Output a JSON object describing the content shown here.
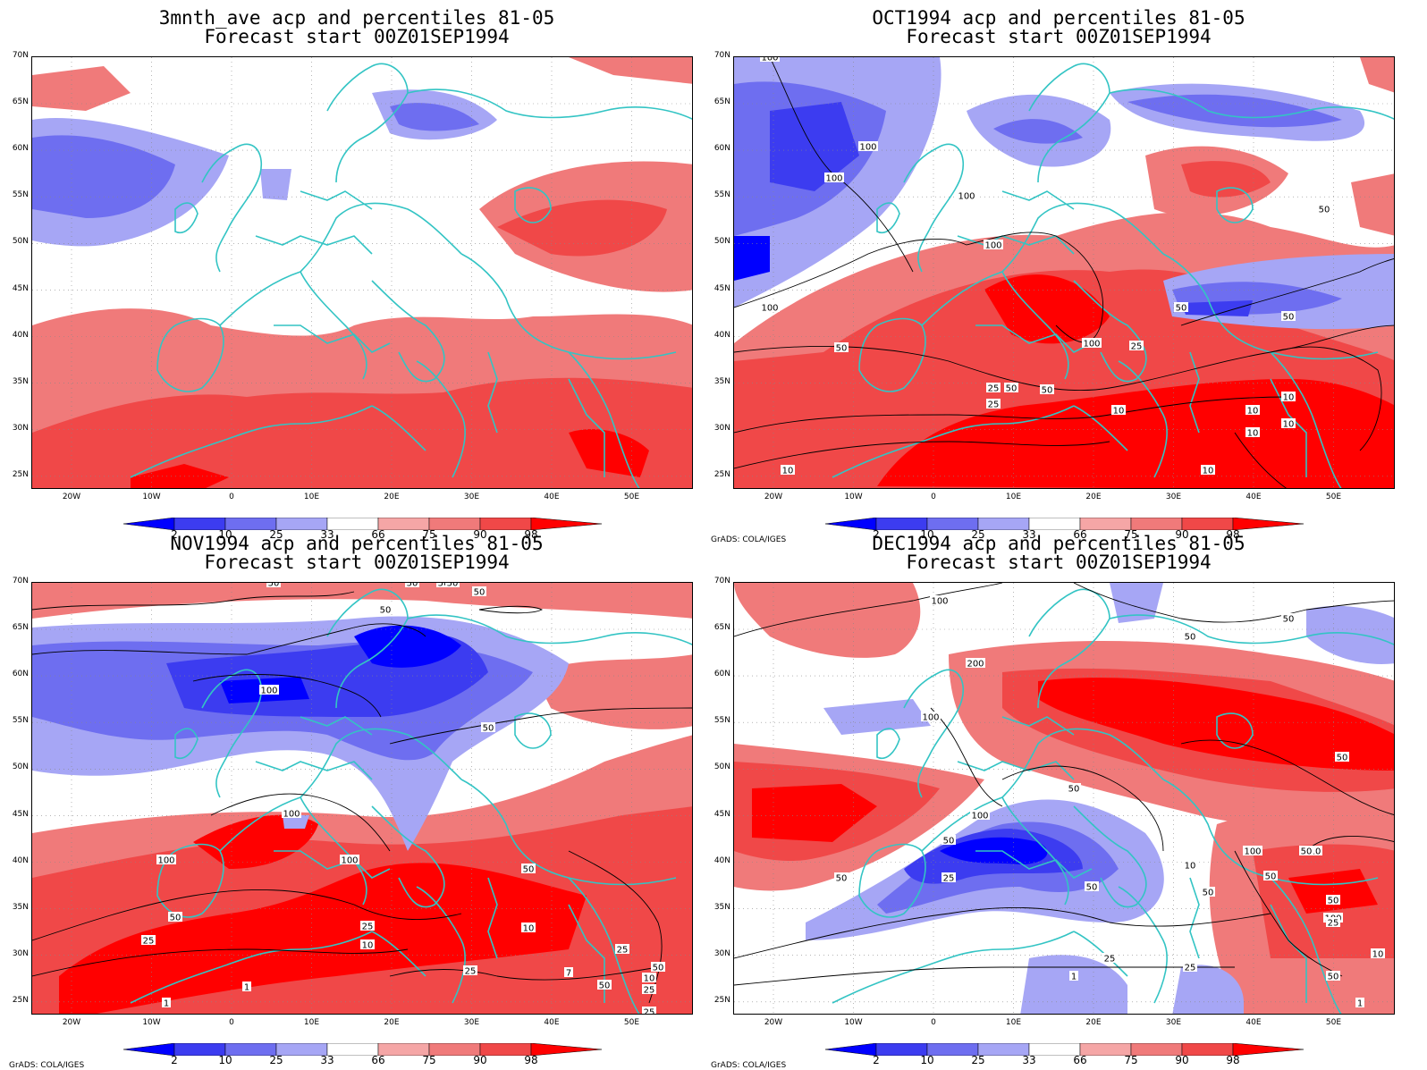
{
  "credit": "GrADS: COLA/IGES",
  "colorbar": {
    "labels": [
      "2",
      "10",
      "25",
      "33",
      "66",
      "75",
      "90",
      "98"
    ],
    "colors": [
      "#0000ff",
      "#3c3cf0",
      "#6e6ef0",
      "#a6a6f5",
      "#ffffff",
      "#f5a6a6",
      "#f07a7a",
      "#f04848",
      "#ff0000"
    ]
  },
  "axes": {
    "lat_labels": [
      "70N",
      "65N",
      "60N",
      "55N",
      "50N",
      "45N",
      "40N",
      "35N",
      "30N",
      "25N"
    ],
    "lon_labels": [
      "20W",
      "10W",
      "0",
      "10E",
      "20E",
      "30E",
      "40E",
      "50E"
    ]
  },
  "panels": [
    {
      "title1": "3mnth_ave acp and percentiles 81-05",
      "title2": "Forecast start 00Z01SEP1994",
      "credit": ""
    },
    {
      "title1": "OCT1994 acp and percentiles 81-05",
      "title2": "Forecast start 00Z01SEP1994",
      "credit": "GrADS: COLA/IGES",
      "contour_labels": [
        "100",
        "100",
        "100",
        "100",
        "100",
        "100",
        "100",
        "50",
        "50",
        "50",
        "50",
        "50",
        "50",
        "25",
        "25",
        "25",
        "10",
        "10",
        "10",
        "10",
        "10",
        "10",
        "10"
      ]
    },
    {
      "title1": "NOV1994 acp and percentiles 81-05",
      "title2": "Forecast start 00Z01SEP1994",
      "credit": "GrADS: COLA/IGES",
      "contour_labels": [
        "50",
        "50",
        "50",
        "50",
        "100",
        "100",
        "100",
        "100",
        "50",
        "50",
        "50",
        "50",
        "25",
        "25",
        "10",
        "10",
        "25",
        "1",
        "7",
        "1",
        "50",
        "25",
        "50",
        "25",
        "10",
        "50",
        "25"
      ]
    },
    {
      "title1": "DEC1994 acp and percentiles 81-05",
      "title2": "Forecast start 00Z01SEP1994",
      "credit": "GrADS: COLA/IGES",
      "contour_labels": [
        "100",
        "50",
        "50",
        "200",
        "100",
        "50",
        "100",
        "50",
        "50",
        "50",
        "100",
        "25",
        "10",
        "50",
        "100",
        "50",
        "25",
        "50",
        "25",
        "10",
        "25",
        "1",
        "50",
        "25",
        "10",
        "1",
        "50",
        "50"
      ]
    }
  ]
}
